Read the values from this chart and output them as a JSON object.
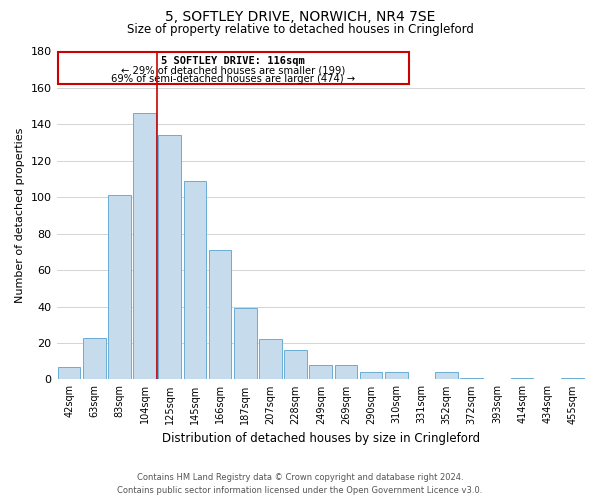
{
  "title": "5, SOFTLEY DRIVE, NORWICH, NR4 7SE",
  "subtitle": "Size of property relative to detached houses in Cringleford",
  "xlabel": "Distribution of detached houses by size in Cringleford",
  "ylabel": "Number of detached properties",
  "bar_labels": [
    "42sqm",
    "63sqm",
    "83sqm",
    "104sqm",
    "125sqm",
    "145sqm",
    "166sqm",
    "187sqm",
    "207sqm",
    "228sqm",
    "249sqm",
    "269sqm",
    "290sqm",
    "310sqm",
    "331sqm",
    "352sqm",
    "372sqm",
    "393sqm",
    "414sqm",
    "434sqm",
    "455sqm"
  ],
  "bar_values": [
    7,
    23,
    101,
    146,
    134,
    109,
    71,
    39,
    22,
    16,
    8,
    8,
    4,
    4,
    0,
    4,
    1,
    0,
    1,
    0,
    1
  ],
  "bar_color": "#c6dcec",
  "bar_edge_color": "#6aadd5",
  "annotation_title": "5 SOFTLEY DRIVE: 116sqm",
  "annotation_line1": "← 29% of detached houses are smaller (199)",
  "annotation_line2": "69% of semi-detached houses are larger (474) →",
  "annotation_box_color": "#ffffff",
  "annotation_box_edge": "#cc0000",
  "property_line_x": 3.5,
  "property_line_color": "#cc0000",
  "ylim": [
    0,
    180
  ],
  "yticks": [
    0,
    20,
    40,
    60,
    80,
    100,
    120,
    140,
    160,
    180
  ],
  "footer_line1": "Contains HM Land Registry data © Crown copyright and database right 2024.",
  "footer_line2": "Contains public sector information licensed under the Open Government Licence v3.0.",
  "background_color": "#ffffff",
  "grid_color": "#cccccc"
}
